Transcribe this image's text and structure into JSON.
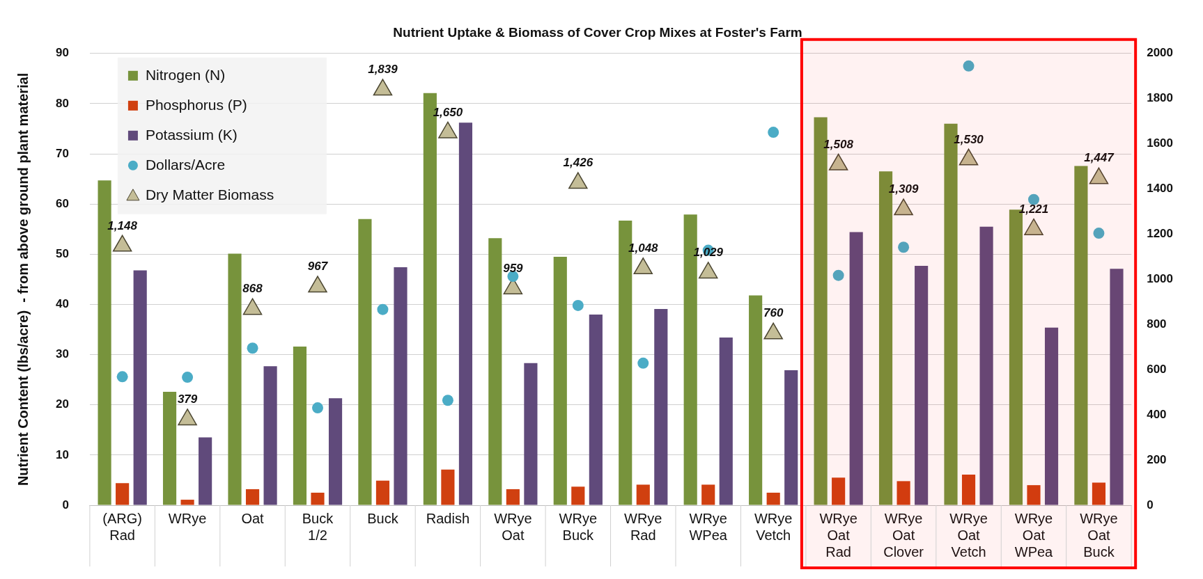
{
  "chart_data": {
    "type": "bar",
    "title": "Nutrient Uptake & Biomass of Cover Crop Mixes at Foster's Farm",
    "ylabel": "Nutrient Content (lbs/acre)  - from above ground plant material",
    "categories": [
      "(ARG) Rad",
      "WRye",
      "Oat",
      "Buck 1/2",
      "Buck",
      "Radish",
      "WRye Oat",
      "WRye Buck",
      "WRye Rad",
      "WRye WPea",
      "WRye Vetch",
      "WRye Oat Rad",
      "WRye Oat Clover",
      "WRye Oat Vetch",
      "WRye Oat WPea",
      "WRye Oat Buck"
    ],
    "series": [
      {
        "name": "Nitrogen (N)",
        "color": "#77933c",
        "values": [
          64.7,
          22.6,
          50.1,
          31.6,
          57.0,
          82.1,
          53.2,
          49.5,
          56.7,
          57.9,
          41.8,
          77.3,
          66.5,
          76.0,
          58.9,
          67.6
        ]
      },
      {
        "name": "Phosphorus (P)",
        "color": "#d04010",
        "values": [
          4.4,
          1.1,
          3.2,
          2.5,
          4.9,
          7.1,
          3.2,
          3.7,
          4.1,
          4.1,
          2.5,
          5.5,
          4.8,
          6.1,
          4.0,
          4.5
        ]
      },
      {
        "name": "Potassium (K)",
        "color": "#604a7b",
        "values": [
          46.8,
          13.5,
          27.7,
          21.3,
          47.4,
          76.2,
          28.3,
          38.0,
          39.1,
          33.4,
          26.9,
          54.4,
          47.7,
          55.5,
          35.4,
          47.1
        ]
      },
      {
        "name": "Dollars/Acre",
        "type": "scatter",
        "marker": "circle",
        "color": "#4bacc6",
        "values": [
          25.6,
          25.5,
          31.3,
          19.4,
          39.0,
          20.9,
          45.6,
          39.8,
          28.3,
          50.8,
          74.3,
          45.8,
          51.4,
          87.5,
          60.9,
          54.2
        ]
      },
      {
        "name": "Dry Matter Biomass",
        "type": "scatter",
        "marker": "triangle",
        "axis": "y2",
        "color": "#c4bd97",
        "values": [
          1148,
          379,
          868,
          967,
          1839,
          1650,
          959,
          1426,
          1048,
          1029,
          760,
          1508,
          1309,
          1530,
          1221,
          1447
        ],
        "value_labels": [
          "1,148",
          "379",
          "868",
          "967",
          "1,839",
          "1,650",
          "959",
          "1,426",
          "1,048",
          "1,029",
          "760",
          "1,508",
          "1,309",
          "1,530",
          "1,221",
          "1,447"
        ]
      }
    ],
    "ylim": [
      0,
      90
    ],
    "yticks": [
      0,
      10,
      20,
      30,
      40,
      50,
      60,
      70,
      80,
      90
    ],
    "y2lim": [
      0,
      2000
    ],
    "y2ticks": [
      0,
      200,
      400,
      600,
      800,
      1000,
      1200,
      1400,
      1600,
      1800,
      2000
    ],
    "grid": "y",
    "legend": "top left",
    "bands": [
      {
        "axis": "x",
        "from": "WRye Oat Rad",
        "to": "WRye Oat Buck",
        "color": "#ff0000"
      }
    ]
  }
}
